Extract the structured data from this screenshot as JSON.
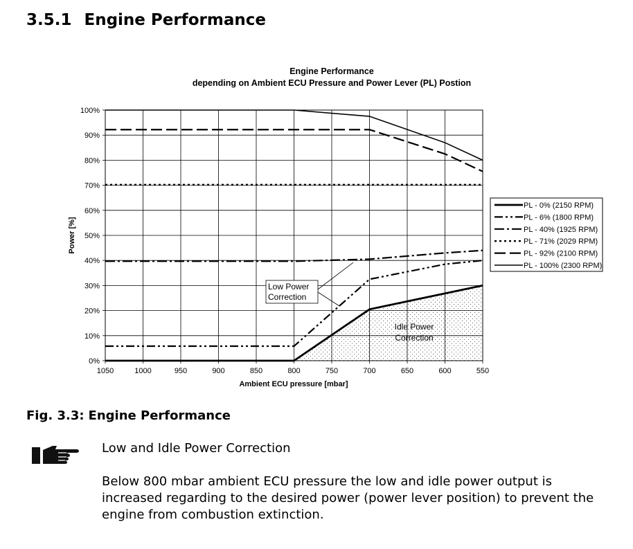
{
  "section": {
    "number": "3.5.1",
    "title": "Engine Performance"
  },
  "figure": {
    "number": "Fig. 3.3:",
    "title": "Engine Performance"
  },
  "note": {
    "icon": "pointing-hand-icon",
    "heading": "Low and Idle Power Correction",
    "body": "Below 800 mbar ambient ECU pressure the low and idle power output is increased regarding to the desired power (power lever position) to prevent the engine from combustion extinction."
  },
  "chart_data": {
    "type": "line",
    "title": "Engine Performance",
    "subtitle": "depending on Ambient ECU Pressure and Power Lever (PL) Postion",
    "xlabel": "Ambient ECU pressure [mbar]",
    "ylabel": "Power [%]",
    "x_ticks": [
      1050,
      1000,
      950,
      900,
      850,
      800,
      750,
      700,
      650,
      600,
      550
    ],
    "x_reversed": true,
    "xlim": [
      1050,
      550
    ],
    "y_ticks": [
      "0%",
      "10%",
      "20%",
      "30%",
      "40%",
      "50%",
      "60%",
      "70%",
      "80%",
      "90%",
      "100%"
    ],
    "ylim": [
      0,
      100
    ],
    "grid": true,
    "legend_position": "right",
    "series": [
      {
        "name": "PL - 0% (2150 RPM)",
        "style": "thick-solid",
        "x": [
          1050,
          800,
          700,
          550
        ],
        "y": [
          0,
          0,
          20.5,
          30
        ]
      },
      {
        "name": "PL - 6% (1800 RPM)",
        "style": "dash-dot-dot",
        "x": [
          1050,
          800,
          700,
          600,
          550
        ],
        "y": [
          5.8,
          5.8,
          32.5,
          38.5,
          40
        ]
      },
      {
        "name": "PL - 40% (1925 RPM)",
        "style": "dash-dot",
        "x": [
          1050,
          800,
          700,
          600,
          550
        ],
        "y": [
          39.7,
          39.7,
          40.5,
          43,
          44
        ]
      },
      {
        "name": "PL - 71% (2029 RPM)",
        "style": "dotted",
        "x": [
          1050,
          550
        ],
        "y": [
          70.2,
          70.2
        ]
      },
      {
        "name": "PL - 92% (2100 RPM)",
        "style": "long-dash",
        "x": [
          1050,
          700,
          600,
          550
        ],
        "y": [
          92.2,
          92.2,
          82.5,
          75.5
        ]
      },
      {
        "name": "PL - 100% (2300 RPM)",
        "style": "thin-solid",
        "x": [
          1050,
          800,
          700,
          600,
          550
        ],
        "y": [
          100,
          100,
          97.5,
          87,
          80
        ]
      }
    ],
    "annotations": [
      {
        "lines": [
          "Low Power",
          "Correction"
        ]
      },
      {
        "lines": [
          "Idle Power",
          "Correction"
        ]
      }
    ]
  }
}
